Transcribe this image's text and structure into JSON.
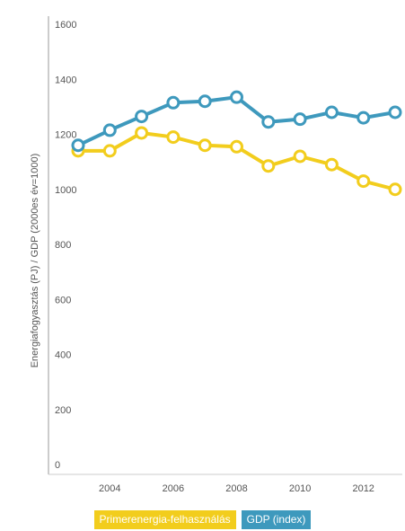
{
  "chart_data": {
    "type": "line",
    "ylabel": "Energiafogyasztás (PJ) / GDP (2000es év=1000)",
    "xlabel": "",
    "x": [
      2003,
      2004,
      2005,
      2006,
      2007,
      2008,
      2009,
      2010,
      2011,
      2012,
      2013
    ],
    "x_ticks": [
      "2004",
      "2006",
      "2008",
      "2010",
      "2012"
    ],
    "y_ticks": [
      "0",
      "200",
      "400",
      "600",
      "800",
      "1000",
      "1200",
      "1400",
      "1600"
    ],
    "ylim": [
      0,
      1600
    ],
    "grid": false,
    "legend_position": "bottom",
    "series": [
      {
        "name": "Primerenergia-felhasználás",
        "color": "#f2cd1d",
        "values": [
          1140,
          1140,
          1205,
          1190,
          1160,
          1155,
          1085,
          1120,
          1090,
          1030,
          1000
        ]
      },
      {
        "name": "GDP (index)",
        "color": "#3e99bd",
        "values": [
          1160,
          1215,
          1265,
          1315,
          1320,
          1335,
          1245,
          1255,
          1280,
          1260,
          1280
        ]
      }
    ]
  }
}
